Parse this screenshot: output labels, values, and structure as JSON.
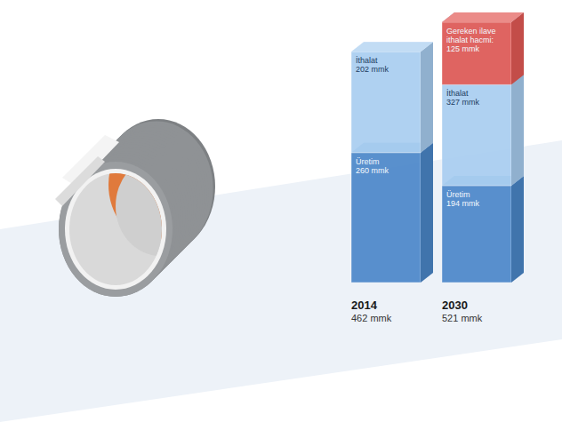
{
  "chart_data": {
    "type": "bar",
    "stacked": true,
    "data_labels": true,
    "tick_labels": false,
    "categories": [
      "2014",
      "2030"
    ],
    "series": [
      {
        "name": "Üretim",
        "color": "#4b87c9",
        "values": [
          260,
          194
        ],
        "value_labels": [
          "260 mmk",
          "194 mmk"
        ]
      },
      {
        "name": "İthalat",
        "color": "#a8cdf0",
        "values": [
          202,
          327
        ],
        "value_labels": [
          "202 mmk",
          "327 mmk"
        ]
      },
      {
        "name": "Gereken ilave ithalat hacmi:",
        "type": "overlay",
        "color": "#e35a55",
        "values": [
          null,
          125
        ],
        "value_labels": [
          null,
          "125 mmk"
        ]
      }
    ],
    "totals": [
      462,
      521
    ],
    "total_labels": [
      "462 mmk",
      "521 mmk"
    ],
    "ylim": [
      0,
      521
    ]
  }
}
